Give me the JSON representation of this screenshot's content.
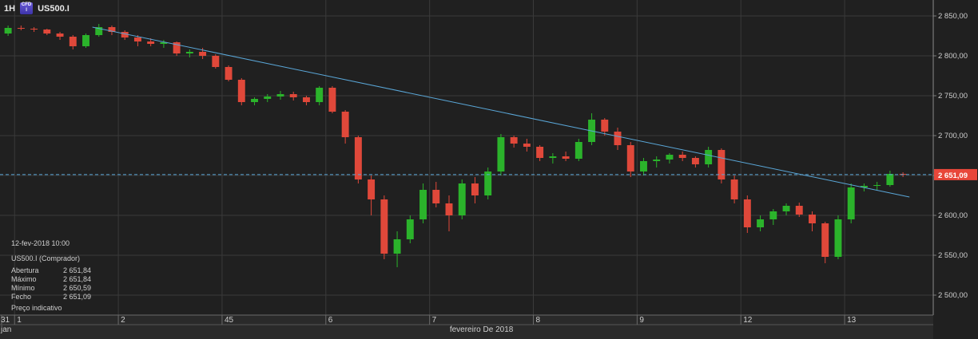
{
  "header": {
    "timeframe": "1H",
    "instrument_badge": "CFD",
    "instrument_badge_sub": "I",
    "symbol": "US500.I"
  },
  "info_panel": {
    "date": "12-fev-2018 10:00",
    "title": "US500.I (Comprador)",
    "rows": [
      {
        "label": "Abertura",
        "value": "2 651,84"
      },
      {
        "label": "Máximo",
        "value": "2 651,84"
      },
      {
        "label": "Mínimo",
        "value": "2 650,59"
      },
      {
        "label": "Fecho",
        "value": "2 651,09"
      }
    ],
    "footer": "Preço indicativo"
  },
  "chart_data": {
    "type": "line",
    "title": "",
    "xlabel": "fevereiro De 2018",
    "ylabel": "",
    "y_ticks": [
      {
        "value": 2850,
        "label": "2 850,00"
      },
      {
        "value": 2800,
        "label": "2 800,00"
      },
      {
        "value": 2750,
        "label": "2 750,00"
      },
      {
        "value": 2700,
        "label": "2 700,00"
      },
      {
        "value": 2650,
        "label": "2 650,00"
      },
      {
        "value": 2600,
        "label": "2 600,00"
      },
      {
        "value": 2550,
        "label": "2 550,00"
      },
      {
        "value": 2500,
        "label": "2 500,00"
      }
    ],
    "ylim": [
      2475,
      2870
    ],
    "x_range": [
      0,
      69
    ],
    "x_ticks": [
      {
        "x": 0,
        "label": "31"
      },
      {
        "x": 1,
        "label": "1"
      },
      {
        "x": 9,
        "label": "2"
      },
      {
        "x": 17,
        "label": "45"
      },
      {
        "x": 25,
        "label": "6"
      },
      {
        "x": 33,
        "label": "7"
      },
      {
        "x": 41,
        "label": "8"
      },
      {
        "x": 49,
        "label": "9"
      },
      {
        "x": 57,
        "label": "12"
      },
      {
        "x": 65,
        "label": "13"
      }
    ],
    "x_sublabel_left": "jan",
    "current_price": 2651.09,
    "current_price_label": "2 651,09",
    "trendline": {
      "x1": 7,
      "y1": 2836,
      "x2": 70,
      "y2": 2623
    },
    "colors": {
      "up": "#2bb32b",
      "down": "#e0483a",
      "trendline": "#5aa7d8",
      "price_line": "#5aa7d8",
      "price_tag": "#e8473a"
    },
    "series": [
      {
        "values": [
          [
            2828,
            2838,
            2825,
            2835
          ],
          [
            2835,
            2838,
            2832,
            2834
          ],
          [
            2834,
            2836,
            2830,
            2833
          ],
          [
            2833,
            2834,
            2826,
            2828
          ],
          [
            2828,
            2830,
            2820,
            2824
          ],
          [
            2824,
            2826,
            2808,
            2812
          ],
          [
            2812,
            2828,
            2810,
            2826
          ],
          [
            2826,
            2840,
            2824,
            2836
          ],
          [
            2836,
            2838,
            2826,
            2830
          ],
          [
            2830,
            2832,
            2820,
            2823
          ],
          [
            2823,
            2826,
            2812,
            2818
          ],
          [
            2818,
            2822,
            2812,
            2815
          ],
          [
            2815,
            2820,
            2810,
            2817
          ],
          [
            2817,
            2818,
            2800,
            2803
          ],
          [
            2803,
            2808,
            2798,
            2805
          ],
          [
            2805,
            2810,
            2796,
            2800
          ],
          [
            2800,
            2802,
            2784,
            2786
          ],
          [
            2786,
            2788,
            2768,
            2770
          ],
          [
            2770,
            2772,
            2738,
            2742
          ],
          [
            2742,
            2748,
            2738,
            2746
          ],
          [
            2746,
            2752,
            2742,
            2749
          ],
          [
            2749,
            2756,
            2745,
            2752
          ],
          [
            2752,
            2755,
            2744,
            2748
          ],
          [
            2748,
            2750,
            2738,
            2742
          ],
          [
            2742,
            2762,
            2738,
            2760
          ],
          [
            2760,
            2762,
            2728,
            2730
          ],
          [
            2730,
            2732,
            2690,
            2698
          ],
          [
            2698,
            2700,
            2640,
            2645
          ],
          [
            2645,
            2650,
            2600,
            2620
          ],
          [
            2620,
            2625,
            2545,
            2552
          ],
          [
            2552,
            2580,
            2535,
            2570
          ],
          [
            2570,
            2600,
            2565,
            2595
          ],
          [
            2595,
            2640,
            2590,
            2632
          ],
          [
            2632,
            2642,
            2610,
            2615
          ],
          [
            2615,
            2625,
            2580,
            2600
          ],
          [
            2600,
            2645,
            2595,
            2640
          ],
          [
            2640,
            2648,
            2615,
            2625
          ],
          [
            2625,
            2660,
            2620,
            2655
          ],
          [
            2655,
            2702,
            2650,
            2698
          ],
          [
            2698,
            2700,
            2685,
            2690
          ],
          [
            2690,
            2696,
            2680,
            2686
          ],
          [
            2686,
            2688,
            2668,
            2672
          ],
          [
            2672,
            2678,
            2665,
            2674
          ],
          [
            2674,
            2680,
            2668,
            2671
          ],
          [
            2671,
            2696,
            2668,
            2692
          ],
          [
            2692,
            2728,
            2688,
            2720
          ],
          [
            2720,
            2722,
            2700,
            2705
          ],
          [
            2705,
            2710,
            2682,
            2688
          ],
          [
            2688,
            2692,
            2648,
            2655
          ],
          [
            2655,
            2672,
            2650,
            2668
          ],
          [
            2668,
            2674,
            2660,
            2670
          ],
          [
            2670,
            2678,
            2665,
            2676
          ],
          [
            2676,
            2680,
            2668,
            2672
          ],
          [
            2672,
            2674,
            2660,
            2664
          ],
          [
            2664,
            2686,
            2660,
            2682
          ],
          [
            2682,
            2684,
            2640,
            2645
          ],
          [
            2645,
            2650,
            2615,
            2620
          ],
          [
            2620,
            2625,
            2578,
            2585
          ],
          [
            2585,
            2600,
            2580,
            2595
          ],
          [
            2595,
            2608,
            2588,
            2605
          ],
          [
            2605,
            2615,
            2600,
            2612
          ],
          [
            2612,
            2616,
            2598,
            2601
          ],
          [
            2601,
            2605,
            2580,
            2590
          ],
          [
            2590,
            2592,
            2540,
            2548
          ],
          [
            2548,
            2600,
            2545,
            2595
          ],
          [
            2595,
            2640,
            2590,
            2635
          ],
          [
            2635,
            2640,
            2630,
            2637
          ],
          [
            2637,
            2642,
            2632,
            2638
          ],
          [
            2638,
            2656,
            2636,
            2652
          ],
          [
            2652,
            2654,
            2648,
            2651
          ]
        ]
      }
    ]
  }
}
